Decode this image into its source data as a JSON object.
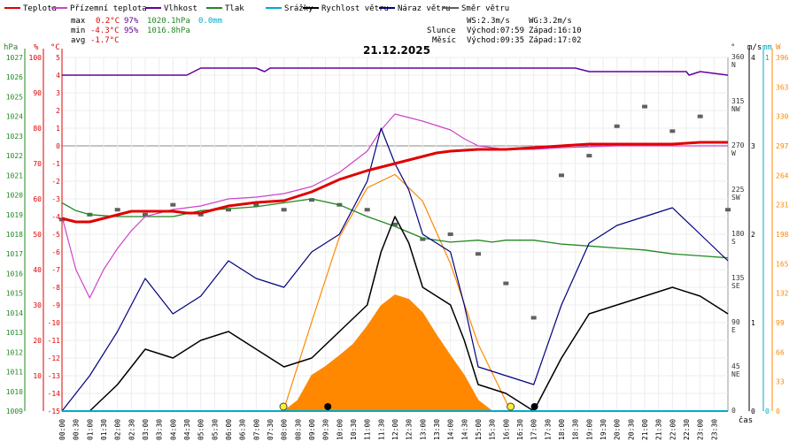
{
  "colors": {
    "temperature": "#e00000",
    "dew_point": "#cc44cc",
    "humidity": "#660099",
    "pressure": "#228822",
    "precipitation": "#00aacc",
    "wind_speed": "#000000",
    "wind_gust": "#000080",
    "wind_dir": "#606060",
    "solar": "#ff8800"
  },
  "legend": [
    {
      "label": "Teplota",
      "color": "#e00000"
    },
    {
      "label": "Přízemní teplota",
      "color": "#cc44cc"
    },
    {
      "label": "Vlhkost",
      "color": "#660099"
    },
    {
      "label": "Tlak",
      "color": "#228822"
    },
    {
      "label": "Srážky",
      "color": "#00aacc"
    },
    {
      "label": "Rychlost větru",
      "color": "#000000"
    },
    {
      "label": "Náraz větru",
      "color": "#000080"
    },
    {
      "label": "Směr větru",
      "color": "#606060"
    }
  ],
  "stats": {
    "max": {
      "label": "max",
      "temp": "0.2°C",
      "hum": "97%",
      "press": "1020.1hPa",
      "rain": "0.0mm"
    },
    "min": {
      "label": "min",
      "temp": "-4.3°C",
      "hum": "95%",
      "press": "1016.8hPa"
    },
    "avg": {
      "label": "avg",
      "temp": "-1.7°C"
    }
  },
  "info": {
    "ws": "WS:2.3m/s",
    "wg": "WG:3.2m/s",
    "sun_label": "Slunce",
    "sunrise": "Východ:07:59",
    "sunset": "Západ:16:10",
    "moon_label": "Měsíc",
    "moonrise": "Východ:09:35",
    "moonset": "Západ:17:02"
  },
  "chart_data": {
    "type": "line",
    "title": "21.12.2025",
    "xlabel": "čas",
    "x_ticks": [
      "00:00",
      "00:30",
      "01:00",
      "01:30",
      "02:00",
      "02:30",
      "03:00",
      "03:30",
      "04:00",
      "04:30",
      "05:00",
      "05:30",
      "06:00",
      "06:30",
      "07:00",
      "07:30",
      "08:00",
      "08:30",
      "09:00",
      "09:30",
      "10:00",
      "10:30",
      "11:00",
      "11:30",
      "12:00",
      "12:30",
      "13:00",
      "13:30",
      "14:00",
      "14:30",
      "15:00",
      "15:30",
      "16:00",
      "16:30",
      "17:00",
      "17:30",
      "18:00",
      "18:30",
      "19:00",
      "19:30",
      "20:00",
      "20:30",
      "21:00",
      "21:30",
      "22:00",
      "22:30",
      "23:00",
      "23:30"
    ],
    "axes": {
      "pressure": {
        "label": "hPa",
        "range": [
          1009,
          1027
        ],
        "ticks": [
          1009,
          1010,
          1011,
          1012,
          1013,
          1014,
          1015,
          1016,
          1017,
          1018,
          1019,
          1020,
          1021,
          1022,
          1023,
          1024,
          1025,
          1026,
          1027
        ]
      },
      "humidity": {
        "label": "%",
        "range": [
          0,
          100
        ],
        "ticks": [
          10,
          20,
          30,
          40,
          50,
          60,
          70,
          80,
          90,
          100
        ]
      },
      "temperature": {
        "label": "°C",
        "range": [
          -15,
          5
        ],
        "ticks": [
          5,
          4,
          3,
          2,
          1,
          0,
          -1,
          -2,
          -3,
          -4,
          -5,
          -6,
          -7,
          -8,
          -9,
          -10,
          -11,
          -12,
          -13,
          -14,
          -15
        ]
      },
      "wind_dir": {
        "label": "°",
        "range": [
          0,
          360
        ],
        "ticks": [
          "0",
          "45 NE",
          "90 E",
          "135 SE",
          "180 S",
          "225 SW",
          "270 W",
          "315 NW",
          "360 N"
        ]
      },
      "wind": {
        "label": "m/s",
        "range": [
          0,
          4
        ],
        "ticks": [
          0,
          1,
          2,
          3,
          4
        ]
      },
      "rain": {
        "label": "mm",
        "range": [
          0,
          1
        ],
        "ticks": [
          0,
          1
        ]
      },
      "solar": {
        "label": "W",
        "range": [
          0,
          396
        ],
        "ticks": [
          0,
          33,
          66,
          99,
          132,
          165,
          198,
          231,
          264,
          297,
          330,
          363,
          396
        ]
      }
    },
    "series": [
      {
        "name": "Teplota",
        "axis": "temperature",
        "points": [
          [
            0,
            -4.1
          ],
          [
            0.5,
            -4.3
          ],
          [
            1,
            -4.3
          ],
          [
            1.5,
            -4.1
          ],
          [
            2,
            -3.9
          ],
          [
            2.5,
            -3.7
          ],
          [
            3,
            -3.7
          ],
          [
            4,
            -3.7
          ],
          [
            4.5,
            -3.8
          ],
          [
            5,
            -3.8
          ],
          [
            5.5,
            -3.6
          ],
          [
            6,
            -3.4
          ],
          [
            7,
            -3.2
          ],
          [
            8,
            -3.1
          ],
          [
            9,
            -2.6
          ],
          [
            10,
            -1.9
          ],
          [
            11,
            -1.4
          ],
          [
            12,
            -1.0
          ],
          [
            13,
            -0.6
          ],
          [
            13.5,
            -0.4
          ],
          [
            14,
            -0.3
          ],
          [
            15,
            -0.2
          ],
          [
            16,
            -0.2
          ],
          [
            17,
            -0.1
          ],
          [
            18,
            0.0
          ],
          [
            19,
            0.1
          ],
          [
            20,
            0.1
          ],
          [
            21,
            0.1
          ],
          [
            22,
            0.1
          ],
          [
            23,
            0.2
          ],
          [
            24,
            0.2
          ]
        ]
      },
      {
        "name": "Přízemní teplota",
        "axis": "temperature",
        "points": [
          [
            0,
            -4.0
          ],
          [
            0.5,
            -7.0
          ],
          [
            1,
            -8.6
          ],
          [
            1.5,
            -7.0
          ],
          [
            2,
            -5.8
          ],
          [
            2.5,
            -4.8
          ],
          [
            3,
            -4.0
          ],
          [
            4,
            -3.6
          ],
          [
            5,
            -3.4
          ],
          [
            6,
            -3.0
          ],
          [
            7,
            -2.9
          ],
          [
            8,
            -2.7
          ],
          [
            9,
            -2.3
          ],
          [
            10,
            -1.5
          ],
          [
            11,
            -0.3
          ],
          [
            11.5,
            0.9
          ],
          [
            12,
            1.8
          ],
          [
            12.5,
            1.6
          ],
          [
            13,
            1.4
          ],
          [
            14,
            0.9
          ],
          [
            14.5,
            0.4
          ],
          [
            15,
            0.0
          ],
          [
            16,
            -0.2
          ],
          [
            17,
            -0.2
          ],
          [
            18,
            -0.1
          ],
          [
            20,
            0.0
          ],
          [
            22,
            0.0
          ],
          [
            24,
            0.0
          ]
        ]
      },
      {
        "name": "Vlhkost",
        "axis": "humidity",
        "points": [
          [
            0,
            95
          ],
          [
            4.5,
            95
          ],
          [
            5,
            97
          ],
          [
            7,
            97
          ],
          [
            7.3,
            96
          ],
          [
            7.5,
            97
          ],
          [
            9,
            97
          ],
          [
            18.5,
            97
          ],
          [
            19,
            96
          ],
          [
            22.5,
            96
          ],
          [
            22.6,
            95
          ],
          [
            23,
            96
          ],
          [
            24,
            95
          ]
        ]
      },
      {
        "name": "Tlak",
        "axis": "pressure",
        "points": [
          [
            0,
            1019.6
          ],
          [
            0.5,
            1019.2
          ],
          [
            1,
            1019.0
          ],
          [
            2,
            1018.9
          ],
          [
            3,
            1018.9
          ],
          [
            4,
            1018.9
          ],
          [
            5,
            1019.2
          ],
          [
            6,
            1019.3
          ],
          [
            7,
            1019.4
          ],
          [
            8,
            1019.6
          ],
          [
            9,
            1019.8
          ],
          [
            10,
            1019.5
          ],
          [
            11,
            1018.9
          ],
          [
            12,
            1018.4
          ],
          [
            13,
            1017.8
          ],
          [
            14,
            1017.6
          ],
          [
            15,
            1017.7
          ],
          [
            15.5,
            1017.6
          ],
          [
            16,
            1017.7
          ],
          [
            17,
            1017.7
          ],
          [
            18,
            1017.5
          ],
          [
            19,
            1017.4
          ],
          [
            20,
            1017.3
          ],
          [
            21,
            1017.2
          ],
          [
            22,
            1017.0
          ],
          [
            23,
            1016.9
          ],
          [
            24,
            1016.8
          ]
        ]
      },
      {
        "name": "Rychlost větru",
        "axis": "wind",
        "points": [
          [
            0,
            0.0
          ],
          [
            1,
            0.0
          ],
          [
            2,
            0.3
          ],
          [
            3,
            0.7
          ],
          [
            4,
            0.6
          ],
          [
            5,
            0.8
          ],
          [
            6,
            0.9
          ],
          [
            7,
            0.7
          ],
          [
            8,
            0.5
          ],
          [
            9,
            0.6
          ],
          [
            10,
            0.9
          ],
          [
            11,
            1.2
          ],
          [
            11.5,
            1.8
          ],
          [
            12,
            2.2
          ],
          [
            12.5,
            1.9
          ],
          [
            13,
            1.4
          ],
          [
            14,
            1.2
          ],
          [
            14.5,
            0.8
          ],
          [
            15,
            0.3
          ],
          [
            16,
            0.2
          ],
          [
            17,
            0.0
          ],
          [
            18,
            0.6
          ],
          [
            19,
            1.1
          ],
          [
            20,
            1.2
          ],
          [
            21,
            1.3
          ],
          [
            22,
            1.4
          ],
          [
            23,
            1.3
          ],
          [
            24,
            1.1
          ]
        ]
      },
      {
        "name": "Náraz větru",
        "axis": "wind",
        "points": [
          [
            0,
            0.0
          ],
          [
            1,
            0.4
          ],
          [
            2,
            0.9
          ],
          [
            3,
            1.5
          ],
          [
            4,
            1.1
          ],
          [
            5,
            1.3
          ],
          [
            6,
            1.7
          ],
          [
            7,
            1.5
          ],
          [
            8,
            1.4
          ],
          [
            9,
            1.8
          ],
          [
            10,
            2.0
          ],
          [
            11,
            2.6
          ],
          [
            11.5,
            3.2
          ],
          [
            12,
            2.8
          ],
          [
            12.5,
            2.5
          ],
          [
            13,
            2.0
          ],
          [
            14,
            1.8
          ],
          [
            14.5,
            1.2
          ],
          [
            15,
            0.5
          ],
          [
            16,
            0.4
          ],
          [
            17,
            0.3
          ],
          [
            18,
            1.2
          ],
          [
            19,
            1.9
          ],
          [
            20,
            2.1
          ],
          [
            21,
            2.2
          ],
          [
            22,
            2.3
          ],
          [
            23,
            2.0
          ],
          [
            24,
            1.7
          ]
        ]
      },
      {
        "name": "Směr větru",
        "axis": "wind_dir",
        "points": [
          [
            0,
            195
          ],
          [
            1,
            200
          ],
          [
            2,
            205
          ],
          [
            3,
            200
          ],
          [
            4,
            210
          ],
          [
            5,
            200
          ],
          [
            6,
            205
          ],
          [
            7,
            210
          ],
          [
            8,
            205
          ],
          [
            9,
            215
          ],
          [
            10,
            210
          ],
          [
            11,
            205
          ],
          [
            12,
            190
          ],
          [
            13,
            175
          ],
          [
            14,
            180
          ],
          [
            15,
            160
          ],
          [
            16,
            130
          ],
          [
            17,
            95
          ],
          [
            18,
            240
          ],
          [
            19,
            260
          ],
          [
            20,
            290
          ],
          [
            21,
            310
          ],
          [
            22,
            285
          ],
          [
            23,
            300
          ],
          [
            24,
            205
          ]
        ]
      },
      {
        "name": "Srážky",
        "axis": "rain",
        "points": [
          [
            0,
            0
          ],
          [
            24,
            0
          ]
        ]
      },
      {
        "name": "Solar",
        "axis": "solar",
        "points": [
          [
            0,
            0
          ],
          [
            8,
            0
          ],
          [
            8.5,
            12
          ],
          [
            9,
            40
          ],
          [
            9.5,
            50
          ],
          [
            10,
            62
          ],
          [
            10.5,
            75
          ],
          [
            11,
            95
          ],
          [
            11.5,
            118
          ],
          [
            12,
            130
          ],
          [
            12.5,
            125
          ],
          [
            13,
            110
          ],
          [
            13.5,
            85
          ],
          [
            14,
            62
          ],
          [
            14.5,
            40
          ],
          [
            15,
            12
          ],
          [
            15.5,
            0
          ],
          [
            24,
            0
          ]
        ]
      },
      {
        "name": "Sun curve",
        "axis": "solar",
        "points": [
          [
            7.98,
            0
          ],
          [
            9,
            100
          ],
          [
            10,
            195
          ],
          [
            11,
            250
          ],
          [
            12,
            265
          ],
          [
            13,
            235
          ],
          [
            14,
            165
          ],
          [
            15,
            75
          ],
          [
            16.17,
            0
          ]
        ]
      }
    ]
  }
}
